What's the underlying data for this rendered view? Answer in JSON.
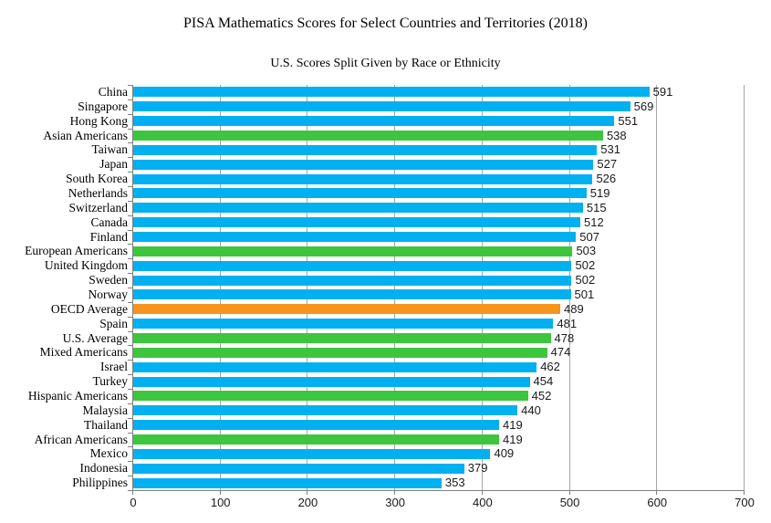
{
  "chart_data": {
    "type": "bar",
    "orientation": "horizontal",
    "title": "PISA Mathematics Scores for Select Countries and Territories (2018)",
    "subtitle": "U.S. Scores Split Given by Race or Ethnicity",
    "xlabel": "",
    "ylabel": "",
    "xlim": [
      0,
      700
    ],
    "x_ticks": [
      0,
      100,
      200,
      300,
      400,
      500,
      600,
      700
    ],
    "grid": "vertical",
    "legend": "none",
    "value_labels": true,
    "categories": [
      "China",
      "Singapore",
      "Hong Kong",
      "Asian Americans",
      "Taiwan",
      "Japan",
      "South Korea",
      "Netherlands",
      "Switzerland",
      "Canada",
      "Finland",
      "European Americans",
      "United Kingdom",
      "Sweden",
      "Norway",
      "OECD Average",
      "Spain",
      "U.S. Average",
      "Mixed Americans",
      "Israel",
      "Turkey",
      "Hispanic Americans",
      "Malaysia",
      "Thailand",
      "African Americans",
      "Mexico",
      "Indonesia",
      "Philippines"
    ],
    "values": [
      591,
      569,
      551,
      538,
      531,
      527,
      526,
      519,
      515,
      512,
      507,
      503,
      502,
      502,
      501,
      489,
      481,
      478,
      474,
      462,
      454,
      452,
      440,
      419,
      419,
      409,
      379,
      353
    ],
    "bar_groups": [
      "country",
      "country",
      "country",
      "us_group",
      "country",
      "country",
      "country",
      "country",
      "country",
      "country",
      "country",
      "us_group",
      "country",
      "country",
      "country",
      "average",
      "country",
      "us_group",
      "us_group",
      "country",
      "country",
      "us_group",
      "country",
      "country",
      "us_group",
      "country",
      "country",
      "country"
    ],
    "group_colors": {
      "country": "#00b0f0",
      "us_group": "#3ec53e",
      "average": "#f7941e"
    }
  },
  "colors": {
    "background": "#ffffff",
    "gridline": "#a6a6a6",
    "axis": "#7f7f7f",
    "text": "#000000",
    "value_text": "#1a1a1a"
  }
}
